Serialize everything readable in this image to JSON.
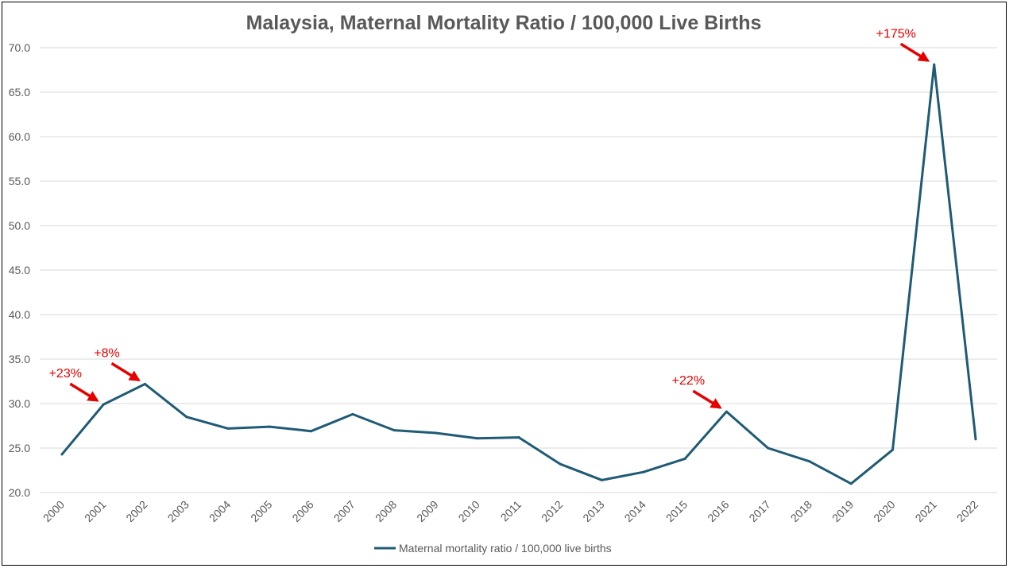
{
  "chart_data": {
    "type": "line",
    "title": "Malaysia, Maternal Mortality Ratio / 100,000 Live Births",
    "xlabel": "",
    "ylabel": "",
    "categories": [
      "2000",
      "2001",
      "2002",
      "2003",
      "2004",
      "2005",
      "2006",
      "2007",
      "2008",
      "2009",
      "2010",
      "2011",
      "2012",
      "2013",
      "2014",
      "2015",
      "2016",
      "2017",
      "2018",
      "2019",
      "2020",
      "2021",
      "2022"
    ],
    "series": [
      {
        "name": "Maternal mortality ratio / 100,000 live births",
        "values": [
          24.3,
          29.9,
          32.2,
          28.5,
          27.2,
          27.4,
          26.9,
          28.8,
          27.0,
          26.7,
          26.1,
          26.2,
          23.2,
          21.4,
          22.3,
          23.8,
          29.1,
          25.0,
          23.5,
          21.0,
          24.8,
          68.1,
          26.0
        ],
        "color": "#1f5b74"
      }
    ],
    "ylim": [
      20,
      70
    ],
    "yticks": [
      "20.0",
      "25.0",
      "30.0",
      "35.0",
      "40.0",
      "45.0",
      "50.0",
      "55.0",
      "60.0",
      "65.0",
      "70.0"
    ],
    "grid": true,
    "legend": "bottom",
    "annotations": [
      {
        "text": "+23%",
        "target": "2001"
      },
      {
        "text": "+8%",
        "target": "2002"
      },
      {
        "text": "+22%",
        "target": "2016"
      },
      {
        "text": "+175%",
        "target": "2021"
      }
    ],
    "annotation_color": "#e60000"
  }
}
